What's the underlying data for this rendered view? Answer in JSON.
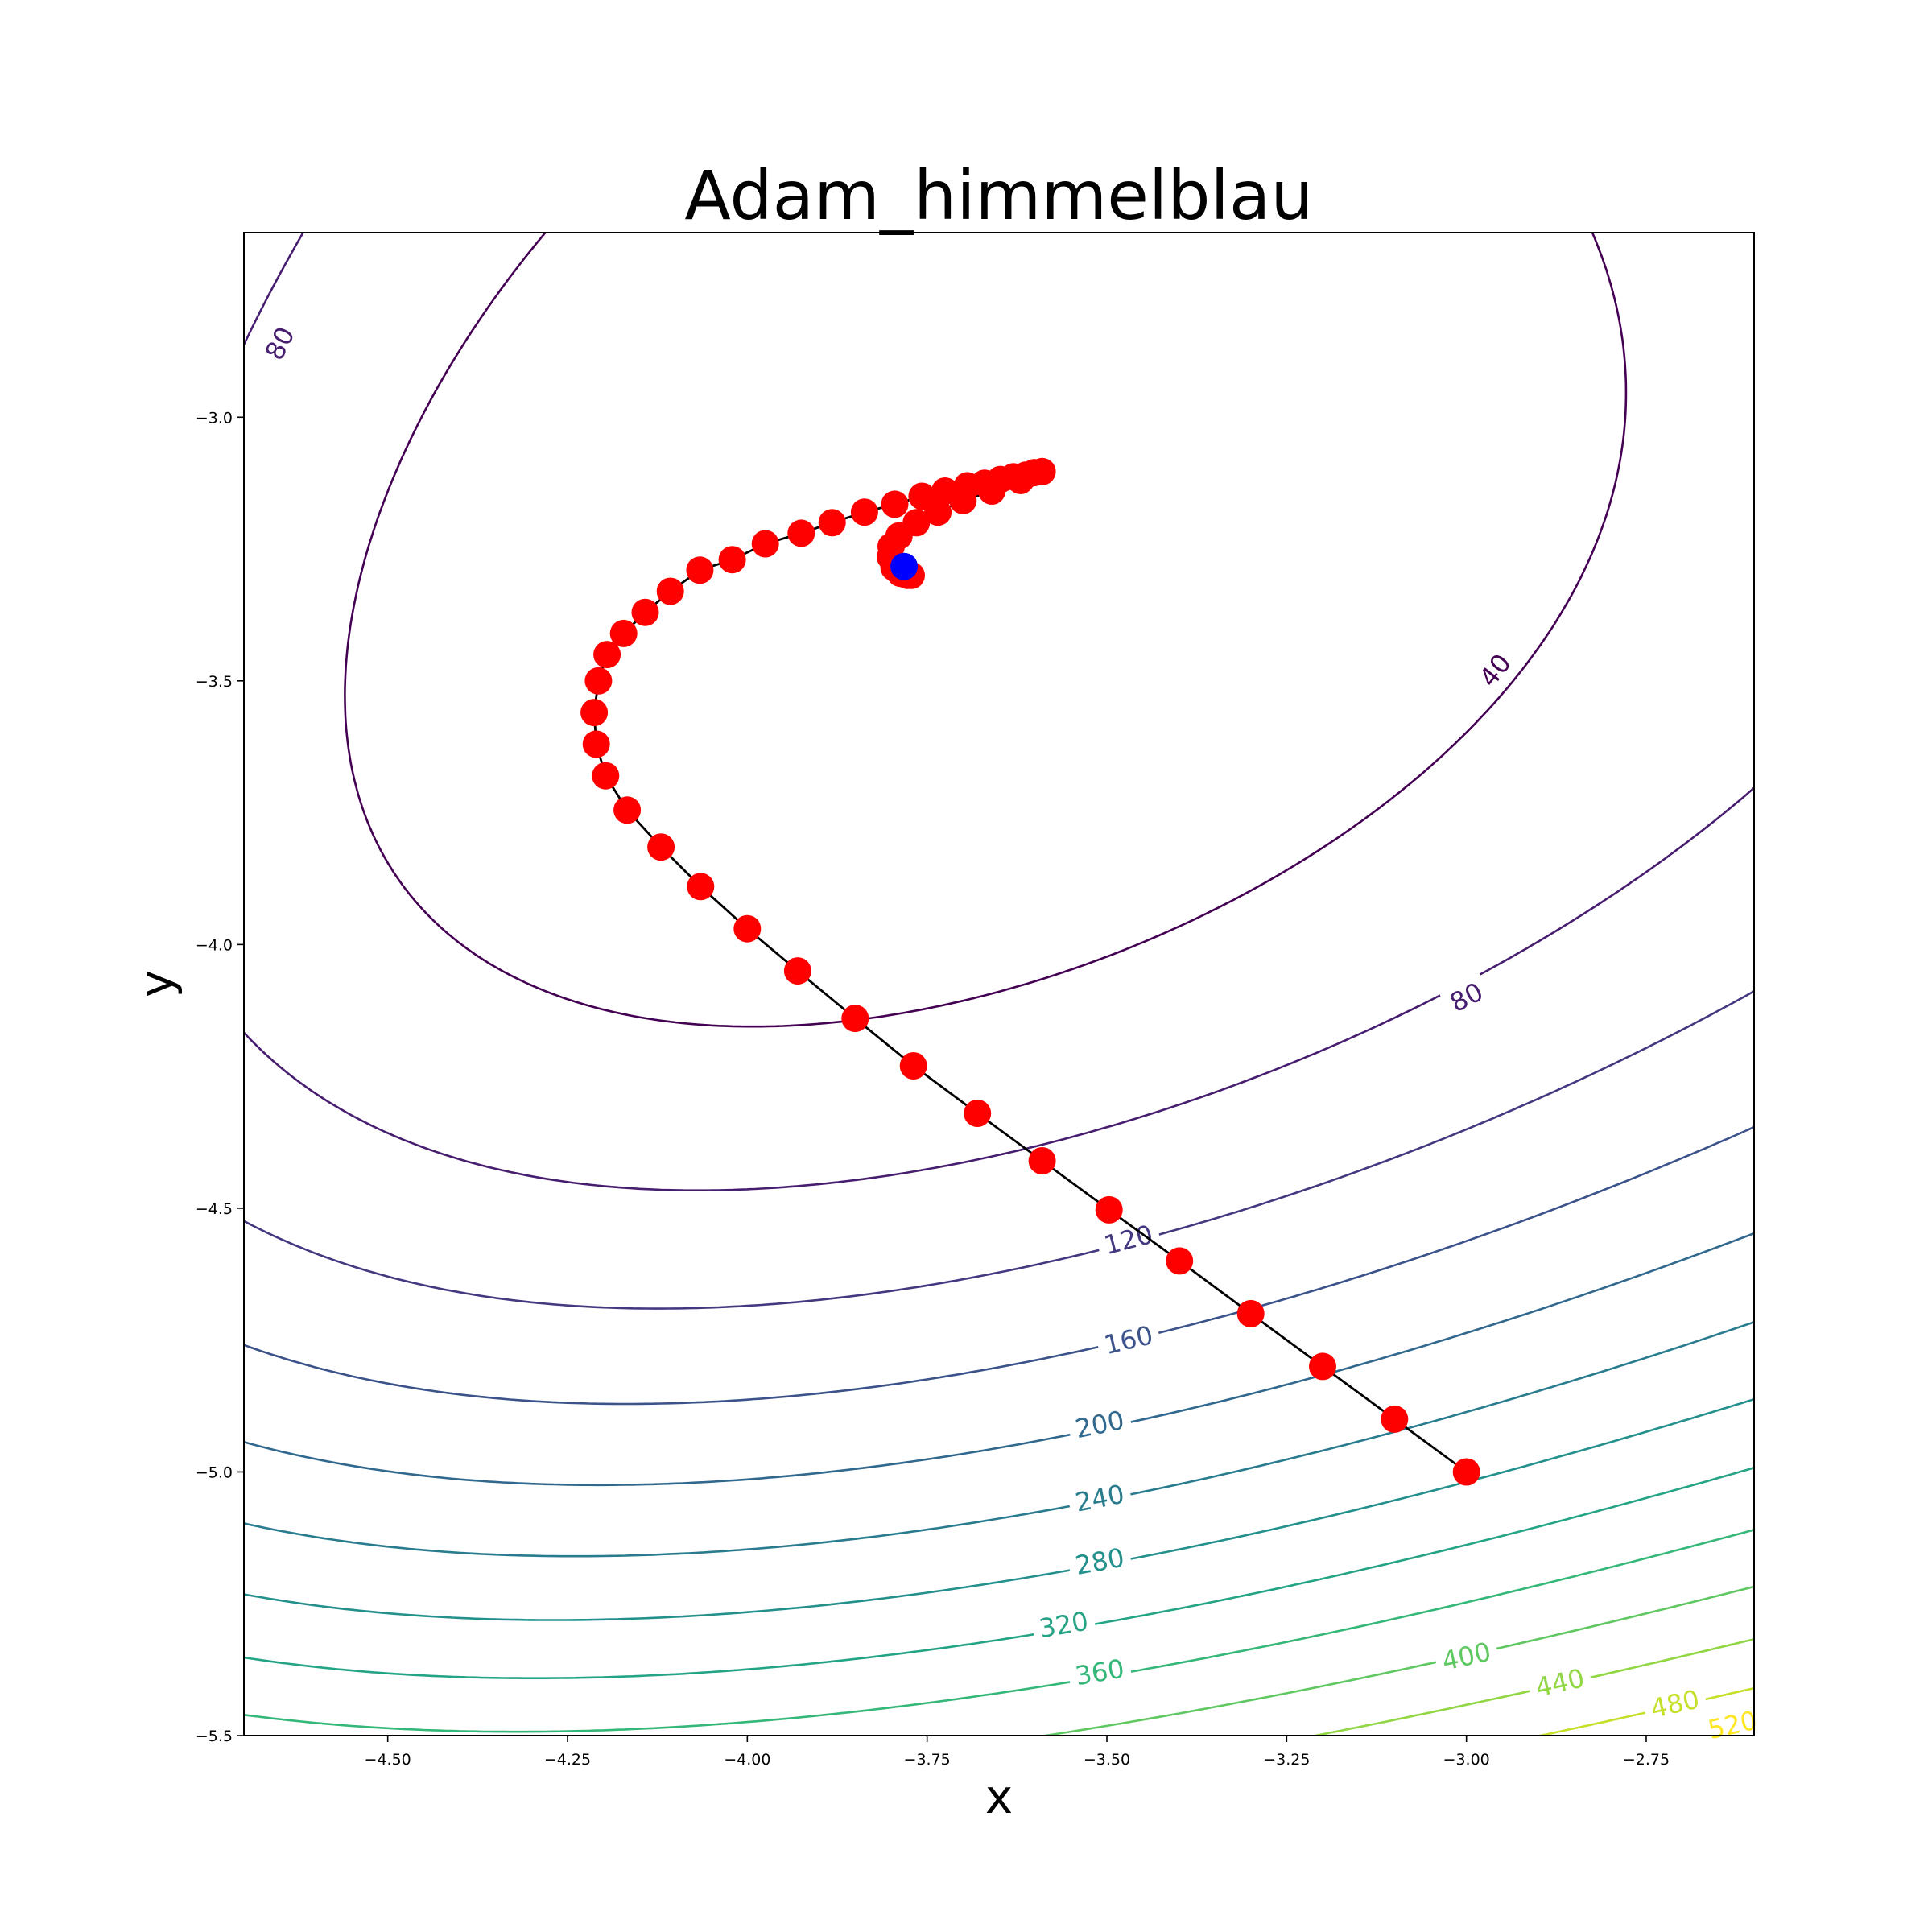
{
  "chart_data": {
    "type": "contour",
    "title": "Adam_himmelblau",
    "xlabel": "x",
    "ylabel": "y",
    "xlim": [
      -4.7,
      -2.6
    ],
    "ylim": [
      -5.5,
      -2.65
    ],
    "x_ticks": [
      -4.5,
      -4.25,
      -4.0,
      -3.75,
      -3.5,
      -3.25,
      -3.0,
      -2.75
    ],
    "x_tick_labels": [
      "−4.50",
      "−4.25",
      "−4.00",
      "−3.75",
      "−3.50",
      "−3.25",
      "−3.00",
      "−2.75"
    ],
    "y_ticks": [
      -3.0,
      -3.5,
      -4.0,
      -4.5,
      -5.0,
      -5.5
    ],
    "y_tick_labels": [
      "−3.0",
      "−3.5",
      "−4.0",
      "−4.5",
      "−5.0",
      "−5.5"
    ],
    "function": "himmelblau",
    "contour_levels": [
      40,
      80,
      120,
      160,
      200,
      240,
      280,
      320,
      360,
      400,
      440,
      480,
      520
    ],
    "contour_labels": [
      {
        "text": "80",
        "level": 80,
        "x": -4.65,
        "y": -2.86
      },
      {
        "text": "40",
        "level": 40,
        "x": -2.96,
        "y": -3.48
      },
      {
        "text": "80",
        "level": 80,
        "x": -3.0,
        "y": -4.1
      },
      {
        "text": "120",
        "level": 120,
        "x": -3.47,
        "y": -4.56
      },
      {
        "text": "160",
        "level": 160,
        "x": -3.47,
        "y": -4.75
      },
      {
        "text": "200",
        "level": 200,
        "x": -3.51,
        "y": -4.91
      },
      {
        "text": "240",
        "level": 240,
        "x": -3.51,
        "y": -5.05
      },
      {
        "text": "280",
        "level": 280,
        "x": -3.51,
        "y": -5.17
      },
      {
        "text": "320",
        "level": 320,
        "x": -3.56,
        "y": -5.29
      },
      {
        "text": "360",
        "level": 360,
        "x": -3.51,
        "y": -5.38
      },
      {
        "text": "400",
        "level": 400,
        "x": -3.0,
        "y": -5.35
      },
      {
        "text": "440",
        "level": 440,
        "x": -2.87,
        "y": -5.4
      },
      {
        "text": "480",
        "level": 480,
        "x": -2.71,
        "y": -5.44
      },
      {
        "text": "520",
        "level": 520,
        "x": -2.63,
        "y": -5.48
      }
    ],
    "series": [
      {
        "points": [
          [
            -3.0,
            -5.0
          ],
          [
            -3.1,
            -4.9
          ],
          [
            -3.2,
            -4.8
          ],
          [
            -3.3,
            -4.7
          ],
          [
            -3.399,
            -4.6
          ],
          [
            -3.497,
            -4.503
          ],
          [
            -3.59,
            -4.41
          ],
          [
            -3.68,
            -4.32
          ],
          [
            -3.769,
            -4.23
          ],
          [
            -3.85,
            -4.14
          ],
          [
            -3.93,
            -4.05
          ],
          [
            -4.0,
            -3.97
          ],
          [
            -4.065,
            -3.89
          ],
          [
            -4.12,
            -3.815
          ],
          [
            -4.167,
            -3.745
          ],
          [
            -4.197,
            -3.68
          ],
          [
            -4.21,
            -3.62
          ],
          [
            -4.213,
            -3.56
          ],
          [
            -4.207,
            -3.5
          ],
          [
            -4.195,
            -3.45
          ],
          [
            -4.172,
            -3.41
          ],
          [
            -4.142,
            -3.37
          ],
          [
            -4.107,
            -3.33
          ],
          [
            -4.066,
            -3.29
          ],
          [
            -4.021,
            -3.27
          ],
          [
            -3.975,
            -3.24
          ],
          [
            -3.925,
            -3.22
          ],
          [
            -3.882,
            -3.2
          ],
          [
            -3.837,
            -3.18
          ],
          [
            -3.795,
            -3.165
          ],
          [
            -3.757,
            -3.15
          ],
          [
            -3.725,
            -3.14
          ],
          [
            -3.694,
            -3.13
          ],
          [
            -3.67,
            -3.125
          ],
          [
            -3.648,
            -3.118
          ],
          [
            -3.63,
            -3.113
          ],
          [
            -3.613,
            -3.11
          ],
          [
            -3.601,
            -3.105
          ],
          [
            -3.59,
            -3.103
          ],
          [
            -3.62,
            -3.12
          ],
          [
            -3.66,
            -3.14
          ],
          [
            -3.7,
            -3.158
          ],
          [
            -3.735,
            -3.18
          ],
          [
            -3.765,
            -3.2
          ],
          [
            -3.789,
            -3.225
          ],
          [
            -3.8,
            -3.245
          ],
          [
            -3.801,
            -3.265
          ],
          [
            -3.796,
            -3.285
          ],
          [
            -3.787,
            -3.296
          ],
          [
            -3.777,
            -3.3
          ],
          [
            -3.772,
            -3.3
          ]
        ]
      }
    ],
    "final_point": [
      -3.782,
      -3.283
    ],
    "colors": {
      "path_line": "#000000",
      "path_points": "#ff0000",
      "final_point": "#0000ff",
      "colormap": "viridis"
    },
    "grid": false
  }
}
